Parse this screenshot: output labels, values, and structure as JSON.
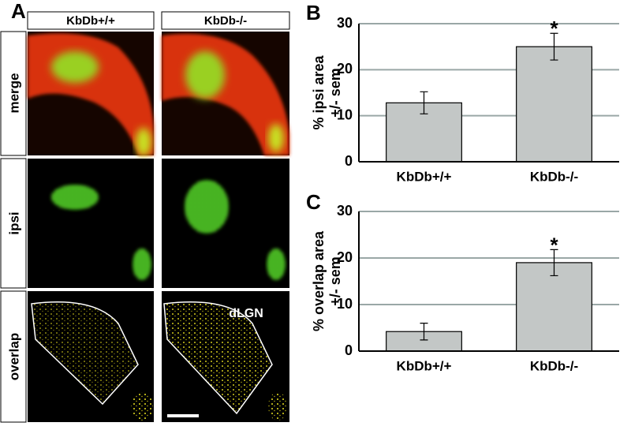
{
  "panel_a": {
    "label": "A",
    "columns": [
      "KbDb+/+",
      "KbDb-/-"
    ],
    "rows": [
      "merge",
      "ipsi",
      "overlap"
    ],
    "region_label": "dLGN"
  },
  "chart_data": [
    {
      "type": "bar",
      "title": "B",
      "ylabel": [
        "% ipsi area",
        "+/- sem"
      ],
      "categories": [
        "KbDb+/+",
        "KbDb-/-"
      ],
      "values": [
        12.8,
        25
      ],
      "errors": [
        2.4,
        2.9
      ],
      "annotation": "*",
      "color": "#c3c7c6",
      "ylim": [
        0,
        30
      ],
      "yticks": [
        0,
        10,
        20,
        30
      ],
      "grid": true
    },
    {
      "type": "bar",
      "title": "C",
      "ylabel": [
        "% overlap area",
        "+/- sem"
      ],
      "categories": [
        "KbDb+/+",
        "KbDb-/-"
      ],
      "values": [
        4.2,
        19
      ],
      "errors": [
        1.8,
        2.8
      ],
      "annotation": "*",
      "color": "#c3c7c6",
      "ylim": [
        0,
        30
      ],
      "yticks": [
        0,
        10,
        20,
        30
      ],
      "grid": true
    }
  ]
}
